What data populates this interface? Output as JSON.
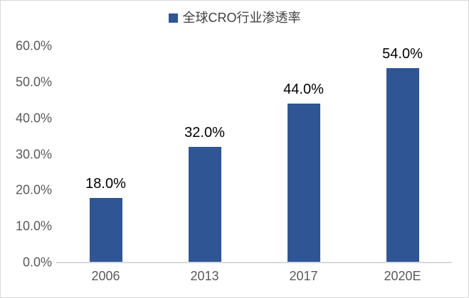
{
  "chart_data": {
    "type": "bar",
    "title": "",
    "series_name": "全球CRO行业渗透率",
    "categories": [
      "2006",
      "2013",
      "2017",
      "2020E"
    ],
    "values": [
      18.0,
      32.0,
      44.0,
      54.0
    ],
    "data_labels": [
      "18.0%",
      "32.0%",
      "44.0%",
      "54.0%"
    ],
    "xlabel": "",
    "ylabel": "",
    "ylim": [
      0,
      60
    ],
    "yticks": [
      0,
      10,
      20,
      30,
      40,
      50,
      60
    ],
    "ytick_labels": [
      "0.0%",
      "10.0%",
      "20.0%",
      "30.0%",
      "40.0%",
      "50.0%",
      "60.0%"
    ],
    "grid": false,
    "legend_position": "top-center",
    "colors": {
      "bar": "#2F5594",
      "legend_marker": "#2F5594",
      "legend_text": "#404040",
      "axis_text": "#595959",
      "data_label_text": "#000000",
      "axis_line": "#D9D9D9",
      "frame_border": "#D9D9D9",
      "background": "#FFFFFF"
    }
  }
}
